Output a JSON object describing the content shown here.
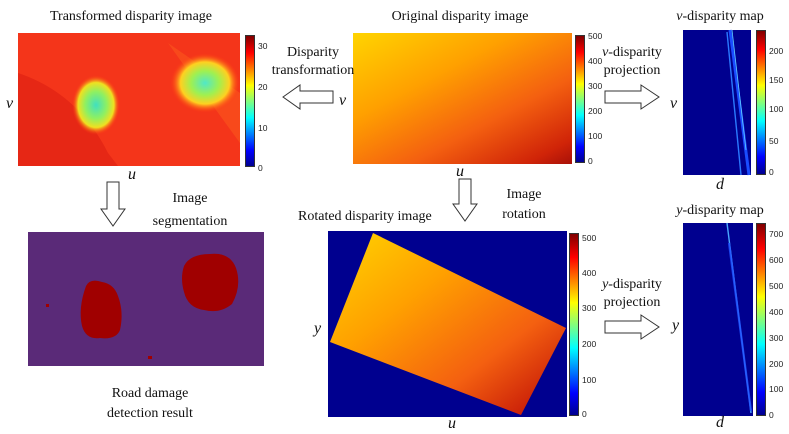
{
  "panels": {
    "transformed": {
      "title": "Transformed disparity image",
      "axis_u": "u",
      "axis_v": "v",
      "colorbar_ticks": [
        "30",
        "20",
        "10",
        "0"
      ]
    },
    "original": {
      "title": "Original disparity image",
      "axis_u": "u",
      "axis_v": "v",
      "colorbar_ticks": [
        "500",
        "400",
        "300",
        "200",
        "100",
        "0"
      ]
    },
    "v_disparity": {
      "title_italic": "v",
      "title_rest": "-disparity map",
      "axis_d": "d",
      "axis_v": "v",
      "colorbar_ticks": [
        "200",
        "150",
        "100",
        "50",
        "0"
      ]
    },
    "segmentation": {
      "caption_line1": "Road damage",
      "caption_line2": "detection result"
    },
    "rotated": {
      "title": "Rotated disparity image",
      "axis_u": "u",
      "axis_y": "y",
      "colorbar_ticks": [
        "500",
        "400",
        "300",
        "200",
        "100",
        "0"
      ]
    },
    "y_disparity": {
      "title_italic": "y",
      "title_rest": "-disparity map",
      "axis_d": "d",
      "axis_y": "y",
      "colorbar_ticks": [
        "700",
        "600",
        "500",
        "400",
        "300",
        "200",
        "100",
        "0"
      ]
    }
  },
  "arrows": {
    "disparity_transformation": {
      "line1": "Disparity",
      "line2": "transformation"
    },
    "v_projection": {
      "line1_italic": "v",
      "line1_rest": "-disparity",
      "line2": "projection"
    },
    "image_segmentation": {
      "line1": "Image",
      "line2": "segmentation"
    },
    "image_rotation": {
      "line1": "Image",
      "line2": "rotation"
    },
    "y_projection": {
      "line1_italic": "y",
      "line1_rest": "-disparity",
      "line2": "projection"
    }
  },
  "colors": {
    "jet_dark_blue": "#00008f",
    "segmentation_background": "#5a2a78",
    "segmentation_damage": "#a00000"
  }
}
